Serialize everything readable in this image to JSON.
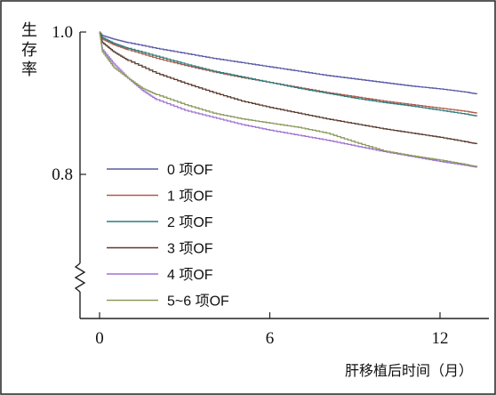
{
  "chart_data": {
    "type": "line",
    "title": "",
    "ylabel": "生存率",
    "xlabel": "肝移植后时间（月）",
    "xlim": [
      0,
      13.3
    ],
    "ylim_visible": [
      0.8,
      1.0
    ],
    "axis_break": "y-axis break below 0.8",
    "x_ticks": [
      {
        "value": 0,
        "label": "0"
      },
      {
        "value": 6,
        "label": "6"
      },
      {
        "value": 12,
        "label": "12"
      }
    ],
    "y_ticks": [
      {
        "value": 1.0,
        "label": "1.0"
      },
      {
        "value": 0.8,
        "label": "0.8"
      }
    ],
    "grid": false,
    "legend_position": "inside-lower-left",
    "series": [
      {
        "name": "0 项OF",
        "color": "#5a5aa8",
        "x": [
          0,
          0.1,
          0.5,
          1,
          2,
          3,
          4,
          5,
          6,
          7,
          8,
          9,
          10,
          11,
          12,
          13,
          13.3
        ],
        "y": [
          1.0,
          0.995,
          0.99,
          0.985,
          0.977,
          0.97,
          0.963,
          0.957,
          0.951,
          0.945,
          0.939,
          0.934,
          0.929,
          0.924,
          0.92,
          0.915,
          0.913
        ]
      },
      {
        "name": "1 项OF",
        "color": "#b05a4a",
        "x": [
          0,
          0.1,
          0.5,
          1,
          2,
          3,
          4,
          5,
          6,
          7,
          8,
          9,
          10,
          11,
          12,
          13,
          13.3
        ],
        "y": [
          1.0,
          0.99,
          0.982,
          0.975,
          0.963,
          0.953,
          0.944,
          0.936,
          0.929,
          0.922,
          0.915,
          0.909,
          0.903,
          0.898,
          0.893,
          0.888,
          0.886
        ]
      },
      {
        "name": "2 项OF",
        "color": "#2e7c7c",
        "x": [
          0,
          0.1,
          0.5,
          1,
          2,
          3,
          4,
          5,
          6,
          7,
          8,
          9,
          10,
          11,
          12,
          13,
          13.3
        ],
        "y": [
          1.0,
          0.992,
          0.984,
          0.977,
          0.966,
          0.955,
          0.945,
          0.937,
          0.929,
          0.921,
          0.914,
          0.907,
          0.901,
          0.896,
          0.89,
          0.884,
          0.882
        ]
      },
      {
        "name": "3 项OF",
        "color": "#5a3a2e",
        "x": [
          0,
          0.1,
          0.5,
          1,
          2,
          3,
          4,
          5,
          6,
          7,
          8,
          9,
          10,
          11,
          12,
          13,
          13.3
        ],
        "y": [
          1.0,
          0.985,
          0.972,
          0.96,
          0.942,
          0.928,
          0.915,
          0.903,
          0.894,
          0.886,
          0.878,
          0.871,
          0.864,
          0.858,
          0.852,
          0.845,
          0.843
        ]
      },
      {
        "name": "4 项OF",
        "color": "#a070d0",
        "x": [
          0,
          0.1,
          0.5,
          1,
          1.5,
          2,
          3,
          4,
          5,
          6,
          7,
          8,
          9,
          10,
          11,
          12,
          13,
          13.3
        ],
        "y": [
          1.0,
          0.975,
          0.955,
          0.935,
          0.918,
          0.905,
          0.89,
          0.88,
          0.87,
          0.862,
          0.855,
          0.848,
          0.84,
          0.832,
          0.825,
          0.818,
          0.812,
          0.81
        ]
      },
      {
        "name": "5~6 项OF",
        "color": "#8a9a5a",
        "x": [
          0,
          0.1,
          0.5,
          1,
          1.5,
          2,
          3,
          4,
          5,
          6,
          7,
          8,
          9,
          10,
          11,
          12,
          13,
          13.3
        ],
        "y": [
          1.0,
          0.972,
          0.95,
          0.935,
          0.921,
          0.912,
          0.898,
          0.886,
          0.878,
          0.872,
          0.866,
          0.858,
          0.845,
          0.833,
          0.826,
          0.82,
          0.813,
          0.811
        ]
      }
    ]
  }
}
